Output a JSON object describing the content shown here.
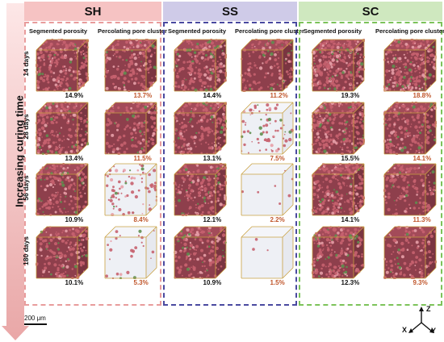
{
  "axis_title": "Increasing curing time",
  "scale_bar": "200 μm",
  "axes": {
    "x": "X",
    "y": "Y",
    "z": "Z"
  },
  "column_labels": {
    "segmented": "Segmented porosity",
    "percolating": "Percolating pore cluster"
  },
  "days": [
    "14 days",
    "28 days",
    "56 days",
    "180 days"
  ],
  "colors": {
    "SH": "#f4a3a3",
    "SS": "#5a55a8",
    "SC": "#7cc35a",
    "pore": "#b0525e",
    "cube_edge": "#c9a040",
    "perc_text": "#c0562b"
  },
  "panels": [
    {
      "name": "SH",
      "header_bg": "#f6c3c3",
      "frame": "#e89c9c",
      "seg": [
        "14.9%",
        "13.4%",
        "10.9%",
        "10.1%"
      ],
      "perc": [
        "13.7%",
        "11.5%",
        "8.4%",
        "5.3%"
      ]
    },
    {
      "name": "SS",
      "header_bg": "#cfcbe8",
      "frame": "#4a4aa0",
      "seg": [
        "14.4%",
        "13.1%",
        "12.1%",
        "10.9%"
      ],
      "perc": [
        "11.2%",
        "7.5%",
        "2.2%",
        "1.5%"
      ]
    },
    {
      "name": "SC",
      "header_bg": "#cfe8bf",
      "frame": "#7cc35a",
      "seg": [
        "19.3%",
        "15.5%",
        "14.1%",
        "12.3%"
      ],
      "perc": [
        "18.8%",
        "14.1%",
        "11.3%",
        "9.3%"
      ]
    }
  ]
}
